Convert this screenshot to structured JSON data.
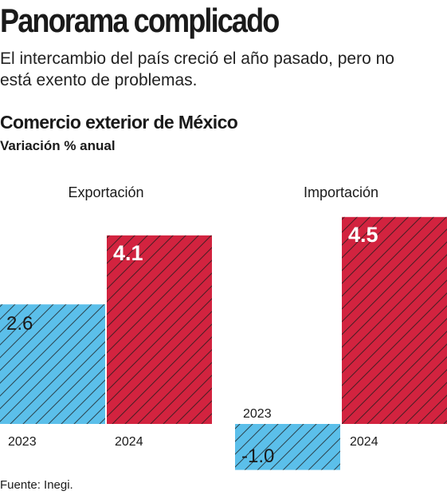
{
  "header": {
    "title": "Panorama complicado",
    "subtitle": "El intercambio del país creció el año pasado, pero no está exento de problemas."
  },
  "chart_heading": {
    "title": "Comercio exterior de México",
    "subtitle": "Variación % anual"
  },
  "footer": {
    "source": "Fuente: Inegi."
  },
  "colors": {
    "2023": "#5bbfea",
    "2024": "#d2233f",
    "text": "#1a1a1a"
  },
  "chart_data": {
    "type": "bar",
    "title": "Comercio exterior de México",
    "subtitle": "Variación % anual",
    "ylabel": "Variación % anual",
    "groups": [
      {
        "name": "Exportación",
        "categories": [
          "2023",
          "2024"
        ],
        "values": [
          2.6,
          4.1
        ],
        "labels": [
          "2.6",
          "4.1"
        ]
      },
      {
        "name": "Importación",
        "categories": [
          "2023",
          "2024"
        ],
        "values": [
          -1.0,
          4.5
        ],
        "labels": [
          "-1.0",
          "4.5"
        ]
      }
    ],
    "grid": false,
    "legend": "none",
    "source": "Fuente: Inegi."
  }
}
